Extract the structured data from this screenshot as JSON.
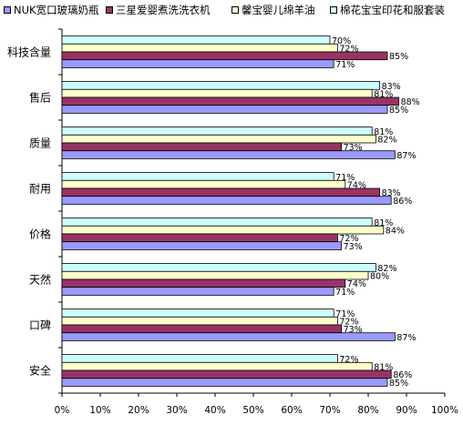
{
  "chart_data": {
    "type": "bar",
    "orientation": "horizontal",
    "categories": [
      "科技含量",
      "售后",
      "质量",
      "耐用",
      "价格",
      "天然",
      "口碑",
      "安全"
    ],
    "series": [
      {
        "name": "NUK宽口玻璃奶瓶",
        "color": "#9999ff",
        "values": [
          71,
          85,
          87,
          86,
          73,
          71,
          87,
          85
        ]
      },
      {
        "name": "三星爱婴煮洗洗衣机",
        "color": "#993366",
        "values": [
          85,
          88,
          73,
          83,
          72,
          74,
          73,
          86
        ]
      },
      {
        "name": "馨宝婴儿绵羊油",
        "color": "#ffffcc",
        "values": [
          72,
          81,
          82,
          74,
          84,
          80,
          72,
          81
        ]
      },
      {
        "name": "棉花宝宝印花和服套装",
        "color": "#ccffff",
        "values": [
          70,
          83,
          81,
          71,
          81,
          82,
          71,
          72
        ]
      }
    ],
    "value_labels": [
      [
        "71%",
        "85%",
        "72%",
        "70%"
      ],
      [
        "85%",
        "88%",
        "81%",
        "83%"
      ],
      [
        "87%",
        "73%",
        "82%",
        "81%"
      ],
      [
        "86%",
        "83%",
        "74%",
        "71%"
      ],
      [
        "73%",
        "72%",
        "84%",
        "81%"
      ],
      [
        "71%",
        "74%",
        "80%",
        "82%"
      ],
      [
        "87%",
        "73%",
        "72%",
        "71%"
      ],
      [
        "85%",
        "86%",
        "81%",
        "72%"
      ]
    ],
    "xlim": [
      0,
      100
    ],
    "x_ticks": [
      "0%",
      "10%",
      "20%",
      "30%",
      "40%",
      "50%",
      "60%",
      "70%",
      "80%",
      "90%",
      "100%"
    ],
    "grid": false,
    "legend_position": "top"
  }
}
